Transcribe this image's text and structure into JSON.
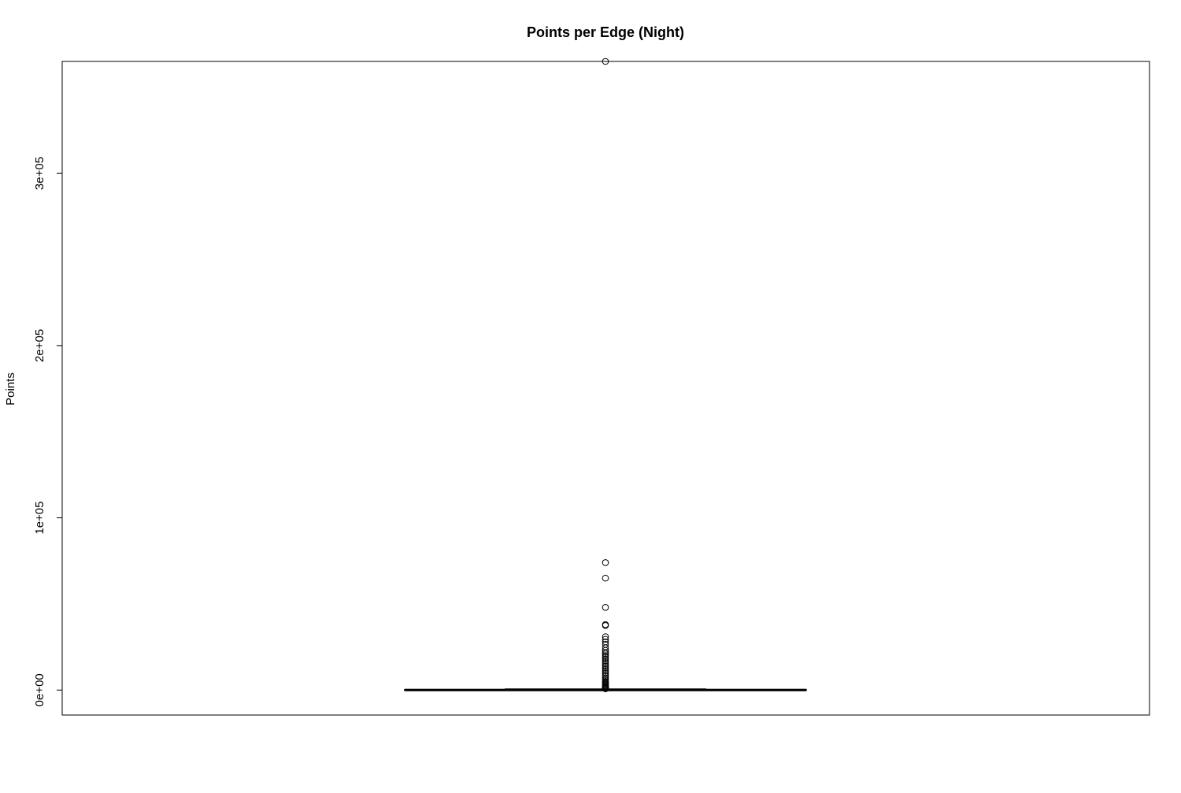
{
  "chart_data": {
    "type": "boxplot",
    "title": "Points per Edge (Night)",
    "xlabel": "",
    "ylabel": "Points",
    "ylim": [
      -14500,
      365000
    ],
    "y_ticks": [
      0,
      100000,
      200000,
      300000
    ],
    "y_tick_labels": [
      "0e+00",
      "1e+05",
      "2e+05",
      "3e+05"
    ],
    "grid": false,
    "legend": "none",
    "box": {
      "min": 0,
      "q1": 0,
      "median": 0,
      "q3": 300,
      "max": 700
    },
    "outliers": [
      365000,
      74000,
      65000,
      48000,
      38000,
      37500,
      31000,
      29500,
      28000,
      26500,
      24500,
      23000,
      22000,
      21000,
      20000,
      19000,
      18000,
      17000,
      16000,
      15000,
      14000,
      13000,
      12000,
      11000,
      10000,
      9000,
      8000,
      7000,
      6000,
      5000,
      4500,
      4000,
      3500,
      3000,
      2500,
      2000,
      1800,
      1600,
      1400,
      1200,
      1100,
      1000,
      900,
      800
    ]
  }
}
